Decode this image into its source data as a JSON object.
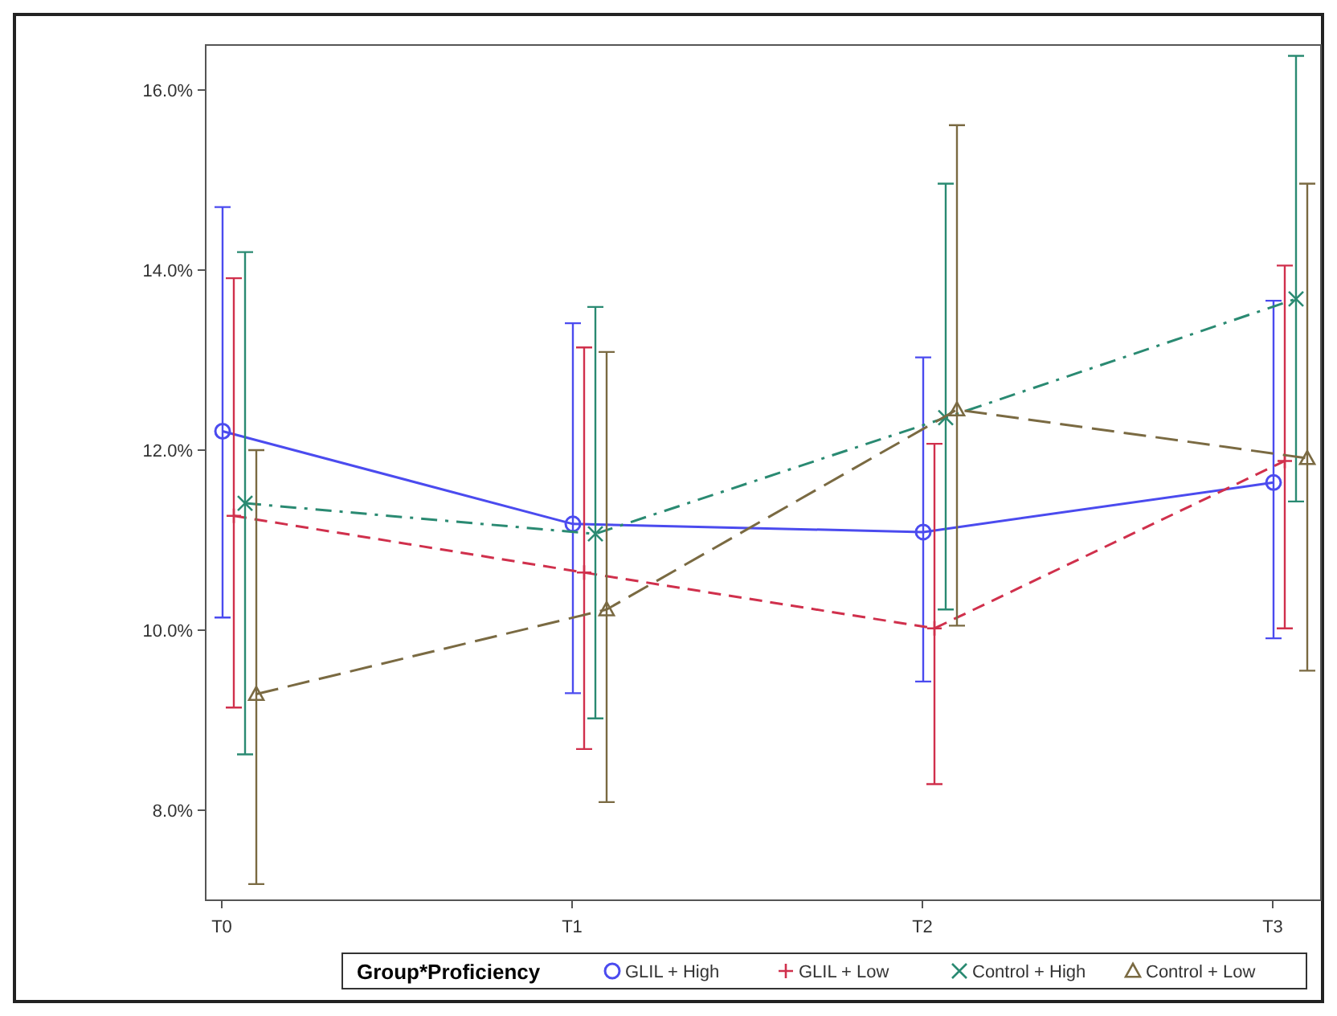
{
  "chart_data": {
    "type": "line",
    "categories": [
      "T0",
      "T1",
      "T2",
      "T3"
    ],
    "ylim": [
      7,
      16.5
    ],
    "yticks": [
      {
        "value": 8,
        "label": "8.0%"
      },
      {
        "value": 10,
        "label": "10.0%"
      },
      {
        "value": 12,
        "label": "12.0%"
      },
      {
        "value": 14,
        "label": "14.0%"
      },
      {
        "value": 16,
        "label": "16.0%"
      }
    ],
    "legend_title": "Group*Proficiency",
    "legend": "bottom",
    "grid": false,
    "series": [
      {
        "name": "GLIL + High",
        "color": "#4b4bef",
        "marker": "circle",
        "line_style": "solid",
        "values": [
          12.21,
          11.18,
          11.09,
          11.64
        ],
        "errors": [
          [
            10.14,
            14.7
          ],
          [
            9.3,
            13.41
          ],
          [
            9.43,
            13.03
          ],
          [
            9.91,
            13.66
          ]
        ]
      },
      {
        "name": "GLIL + Low",
        "color": "#d0304c",
        "marker": "plus",
        "line_style": "dashed",
        "values": [
          11.27,
          10.64,
          10.02,
          11.88
        ],
        "errors": [
          [
            9.14,
            13.91
          ],
          [
            8.68,
            13.14
          ],
          [
            8.29,
            12.07
          ],
          [
            10.02,
            14.05
          ]
        ]
      },
      {
        "name": "Control + High",
        "color": "#2a8a72",
        "marker": "cross",
        "line_style": "dashdot",
        "values": [
          11.41,
          11.07,
          12.36,
          13.68
        ],
        "errors": [
          [
            8.62,
            14.2
          ],
          [
            9.02,
            13.59
          ],
          [
            10.23,
            14.96
          ],
          [
            11.43,
            16.38
          ]
        ]
      },
      {
        "name": "Control + Low",
        "color": "#7a6a42",
        "marker": "triangle",
        "line_style": "longdash",
        "values": [
          9.29,
          10.23,
          12.45,
          11.91
        ],
        "errors": [
          [
            7.18,
            12.0
          ],
          [
            8.09,
            13.09
          ],
          [
            10.05,
            15.61
          ],
          [
            9.55,
            14.96
          ]
        ]
      }
    ]
  }
}
